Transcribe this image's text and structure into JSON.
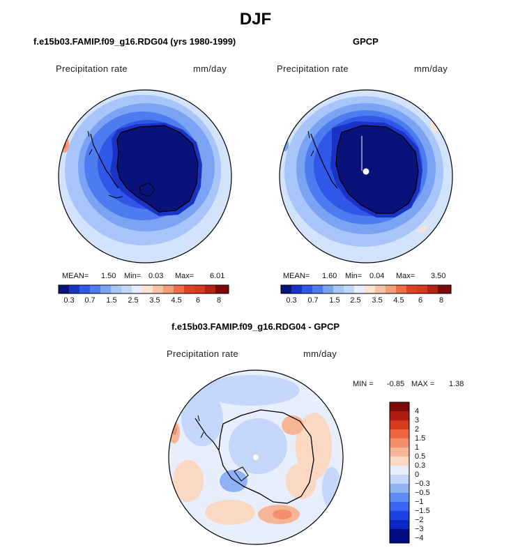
{
  "figure": {
    "title": "DJF"
  },
  "colors": {
    "abs_scale": [
      "#08127a",
      "#1a32c6",
      "#2f57e8",
      "#4c7cf0",
      "#7aa3f4",
      "#a7c5f8",
      "#d3e3fb",
      "#fbe3d3",
      "#f8c2a4",
      "#f49d76",
      "#ee6d45",
      "#e0421f",
      "#b42212",
      "#7d0a07"
    ],
    "diff_scale": [
      "#000c7f",
      "#0c27c8",
      "#1d44e2",
      "#3866f0",
      "#5d8bf4",
      "#8fb2f7",
      "#c4d7fa",
      "#e8eefb",
      "#fbd8c2",
      "#f7b597",
      "#f2906b",
      "#ec6440",
      "#d8391c",
      "#ae1c0f",
      "#7e0b07"
    ]
  },
  "chart_data": [
    {
      "type": "heatmap",
      "projection": "south-polar-stereographic",
      "title": "f.e15b03.FAMIP.f09_g16.RDG04 (yrs 1980-1999)",
      "variable": "Precipitation rate",
      "units": "mm/day",
      "stats": {
        "mean": "1.50",
        "min": "0.03",
        "max": "6.01"
      },
      "colorbar_levels": [
        0.3,
        0.5,
        0.7,
        1,
        1.5,
        2,
        2.5,
        3,
        3.5,
        4,
        4.5,
        5,
        6,
        7,
        8
      ],
      "colorbar_tick_labels": [
        "0.3",
        "0.7",
        "1.5",
        "2.5",
        "3.5",
        "4.5",
        "6",
        "8"
      ]
    },
    {
      "type": "heatmap",
      "projection": "south-polar-stereographic",
      "title": "GPCP",
      "variable": "Precipitation rate",
      "units": "mm/day",
      "stats": {
        "mean": "1.60",
        "min": "0.04",
        "max": "3.50"
      },
      "colorbar_levels": [
        0.3,
        0.5,
        0.7,
        1,
        1.5,
        2,
        2.5,
        3,
        3.5,
        4,
        4.5,
        5,
        6,
        7,
        8
      ],
      "colorbar_tick_labels": [
        "0.3",
        "0.7",
        "1.5",
        "2.5",
        "3.5",
        "4.5",
        "6",
        "8"
      ]
    },
    {
      "type": "heatmap",
      "projection": "south-polar-stereographic",
      "title": "f.e15b03.FAMIP.f09_g16.RDG04 - GPCP",
      "variable": "Precipitation rate",
      "units": "mm/day",
      "stats": {
        "min": "-0.85",
        "max": "1.38"
      },
      "colorbar_tick_labels": [
        "4",
        "3",
        "2",
        "1.5",
        "1",
        "0.5",
        "0.3",
        "0",
        "−0.3",
        "−0.5",
        "−1",
        "−1.5",
        "−2",
        "−3",
        "−4"
      ]
    }
  ],
  "text": {
    "mean_label": "MEAN=",
    "min_label": "Min=",
    "max_label": "Max=",
    "diff_min_label": "MIN =",
    "diff_max_label": "MAX ="
  }
}
